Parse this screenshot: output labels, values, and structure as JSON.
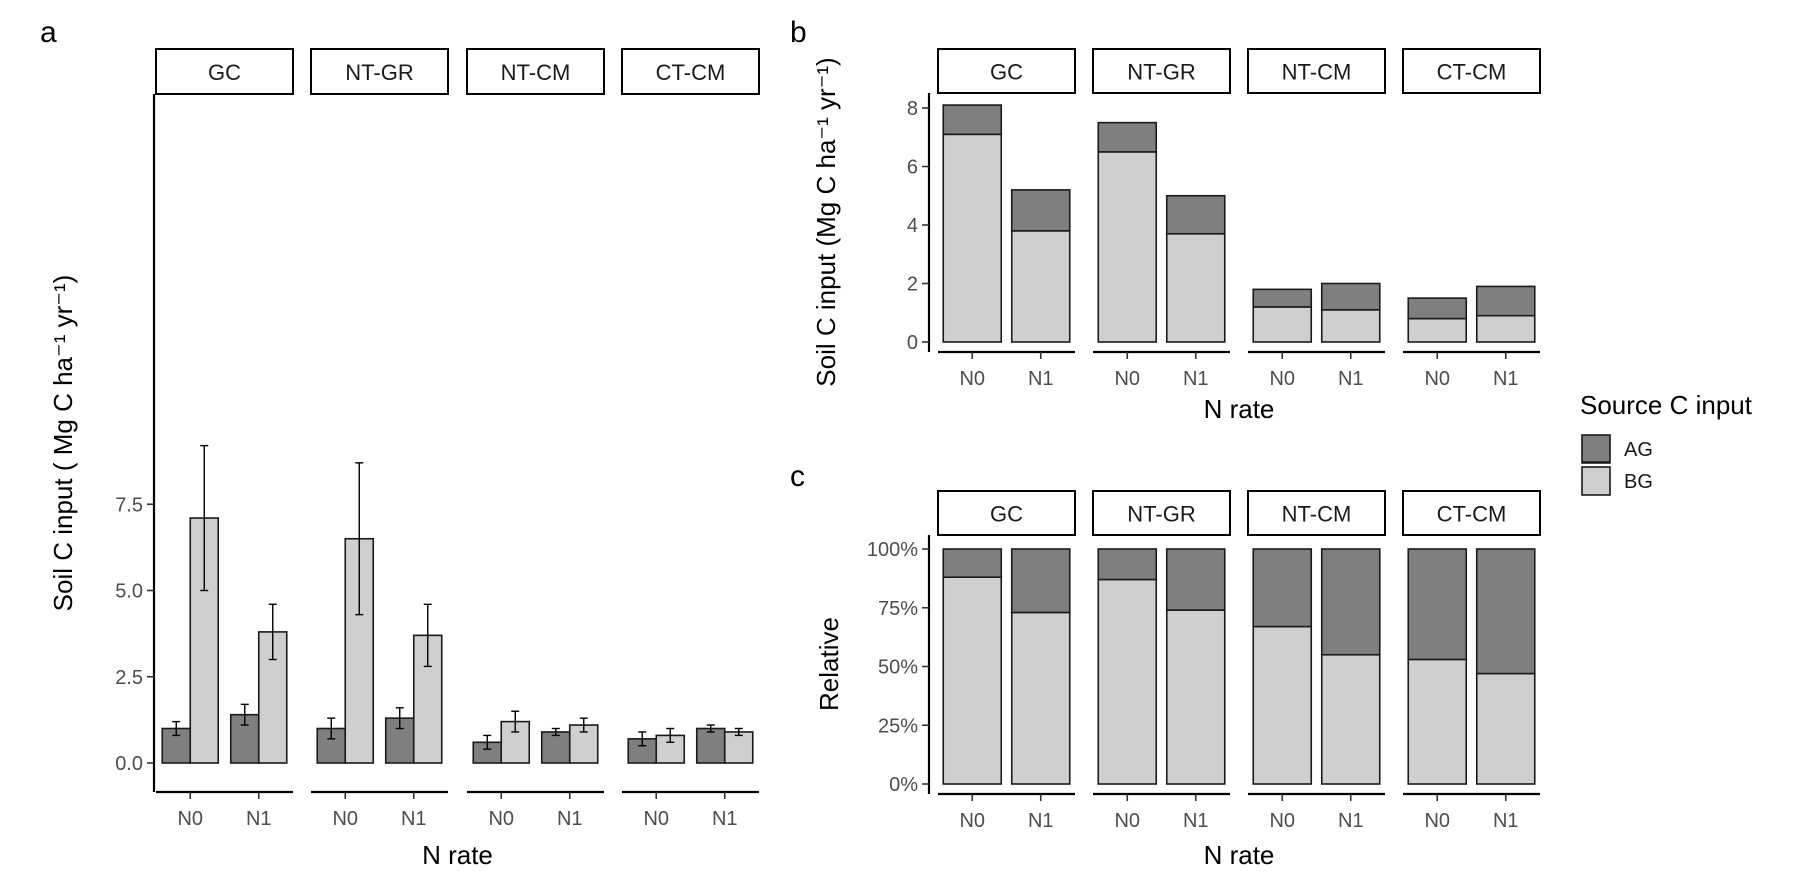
{
  "legend": {
    "title": "Source C input",
    "items": [
      {
        "label": "AG",
        "color": "#7f7f7f"
      },
      {
        "label": "BG",
        "color": "#cfcfcf"
      }
    ]
  },
  "chart_data": [
    {
      "panel": "a",
      "type": "bar",
      "facets": [
        "GC",
        "NT-GR",
        "NT-CM",
        "CT-CM"
      ],
      "categories": [
        "N0",
        "N1"
      ],
      "xlabel": "N rate",
      "ylabel": "Soil C input ( Mg C ha⁻¹ yr⁻¹)",
      "ylim": [
        0,
        9.5
      ],
      "yticks": [
        "0.0",
        "2.5",
        "5.0",
        "7.5"
      ],
      "series": [
        {
          "name": "AG",
          "color": "#7f7f7f",
          "values": {
            "GC": [
              1.0,
              1.4
            ],
            "NT-GR": [
              1.0,
              1.3
            ],
            "NT-CM": [
              0.6,
              0.9
            ],
            "CT-CM": [
              0.7,
              1.0
            ]
          },
          "error_low": {
            "GC": [
              0.8,
              1.1
            ],
            "NT-GR": [
              0.7,
              1.0
            ],
            "NT-CM": [
              0.4,
              0.8
            ],
            "CT-CM": [
              0.5,
              0.9
            ]
          },
          "error_high": {
            "GC": [
              1.2,
              1.7
            ],
            "NT-GR": [
              1.3,
              1.6
            ],
            "NT-CM": [
              0.8,
              1.0
            ],
            "CT-CM": [
              0.9,
              1.1
            ]
          }
        },
        {
          "name": "BG",
          "color": "#cfcfcf",
          "values": {
            "GC": [
              7.1,
              3.8
            ],
            "NT-GR": [
              6.5,
              3.7
            ],
            "NT-CM": [
              1.2,
              1.1
            ],
            "CT-CM": [
              0.8,
              0.9
            ]
          },
          "error_low": {
            "GC": [
              5.0,
              3.0
            ],
            "NT-GR": [
              4.3,
              2.8
            ],
            "NT-CM": [
              0.9,
              0.9
            ],
            "CT-CM": [
              0.6,
              0.8
            ]
          },
          "error_high": {
            "GC": [
              9.2,
              4.6
            ],
            "NT-GR": [
              8.7,
              4.6
            ],
            "NT-CM": [
              1.5,
              1.3
            ],
            "CT-CM": [
              1.0,
              1.0
            ]
          }
        }
      ]
    },
    {
      "panel": "b",
      "type": "bar",
      "stacked": true,
      "facets": [
        "GC",
        "NT-GR",
        "NT-CM",
        "CT-CM"
      ],
      "categories": [
        "N0",
        "N1"
      ],
      "xlabel": "N rate",
      "ylabel": "Soil C input (Mg C ha⁻¹ yr⁻¹)",
      "ylim": [
        0,
        8.4
      ],
      "yticks": [
        "0",
        "2",
        "4",
        "6",
        "8"
      ],
      "series": [
        {
          "name": "BG",
          "color": "#cfcfcf",
          "values": {
            "GC": [
              7.1,
              3.8
            ],
            "NT-GR": [
              6.5,
              3.7
            ],
            "NT-CM": [
              1.2,
              1.1
            ],
            "CT-CM": [
              0.8,
              0.9
            ]
          }
        },
        {
          "name": "AG",
          "color": "#7f7f7f",
          "values": {
            "GC": [
              1.0,
              1.4
            ],
            "NT-GR": [
              1.0,
              1.3
            ],
            "NT-CM": [
              0.6,
              0.9
            ],
            "CT-CM": [
              0.7,
              1.0
            ]
          }
        }
      ]
    },
    {
      "panel": "c",
      "type": "bar",
      "stacked": true,
      "relative": true,
      "facets": [
        "GC",
        "NT-GR",
        "NT-CM",
        "CT-CM"
      ],
      "categories": [
        "N0",
        "N1"
      ],
      "xlabel": "N rate",
      "ylabel": "Relative",
      "ylim": [
        0,
        100
      ],
      "yticks": [
        "0%",
        "25%",
        "50%",
        "75%",
        "100%"
      ],
      "series": [
        {
          "name": "BG",
          "color": "#cfcfcf",
          "values": {
            "GC": [
              88,
              73
            ],
            "NT-GR": [
              87,
              74
            ],
            "NT-CM": [
              67,
              55
            ],
            "CT-CM": [
              53,
              47
            ]
          }
        },
        {
          "name": "AG",
          "color": "#7f7f7f",
          "values": {
            "GC": [
              12,
              27
            ],
            "NT-GR": [
              13,
              26
            ],
            "NT-CM": [
              33,
              45
            ],
            "CT-CM": [
              47,
              53
            ]
          }
        }
      ]
    }
  ]
}
